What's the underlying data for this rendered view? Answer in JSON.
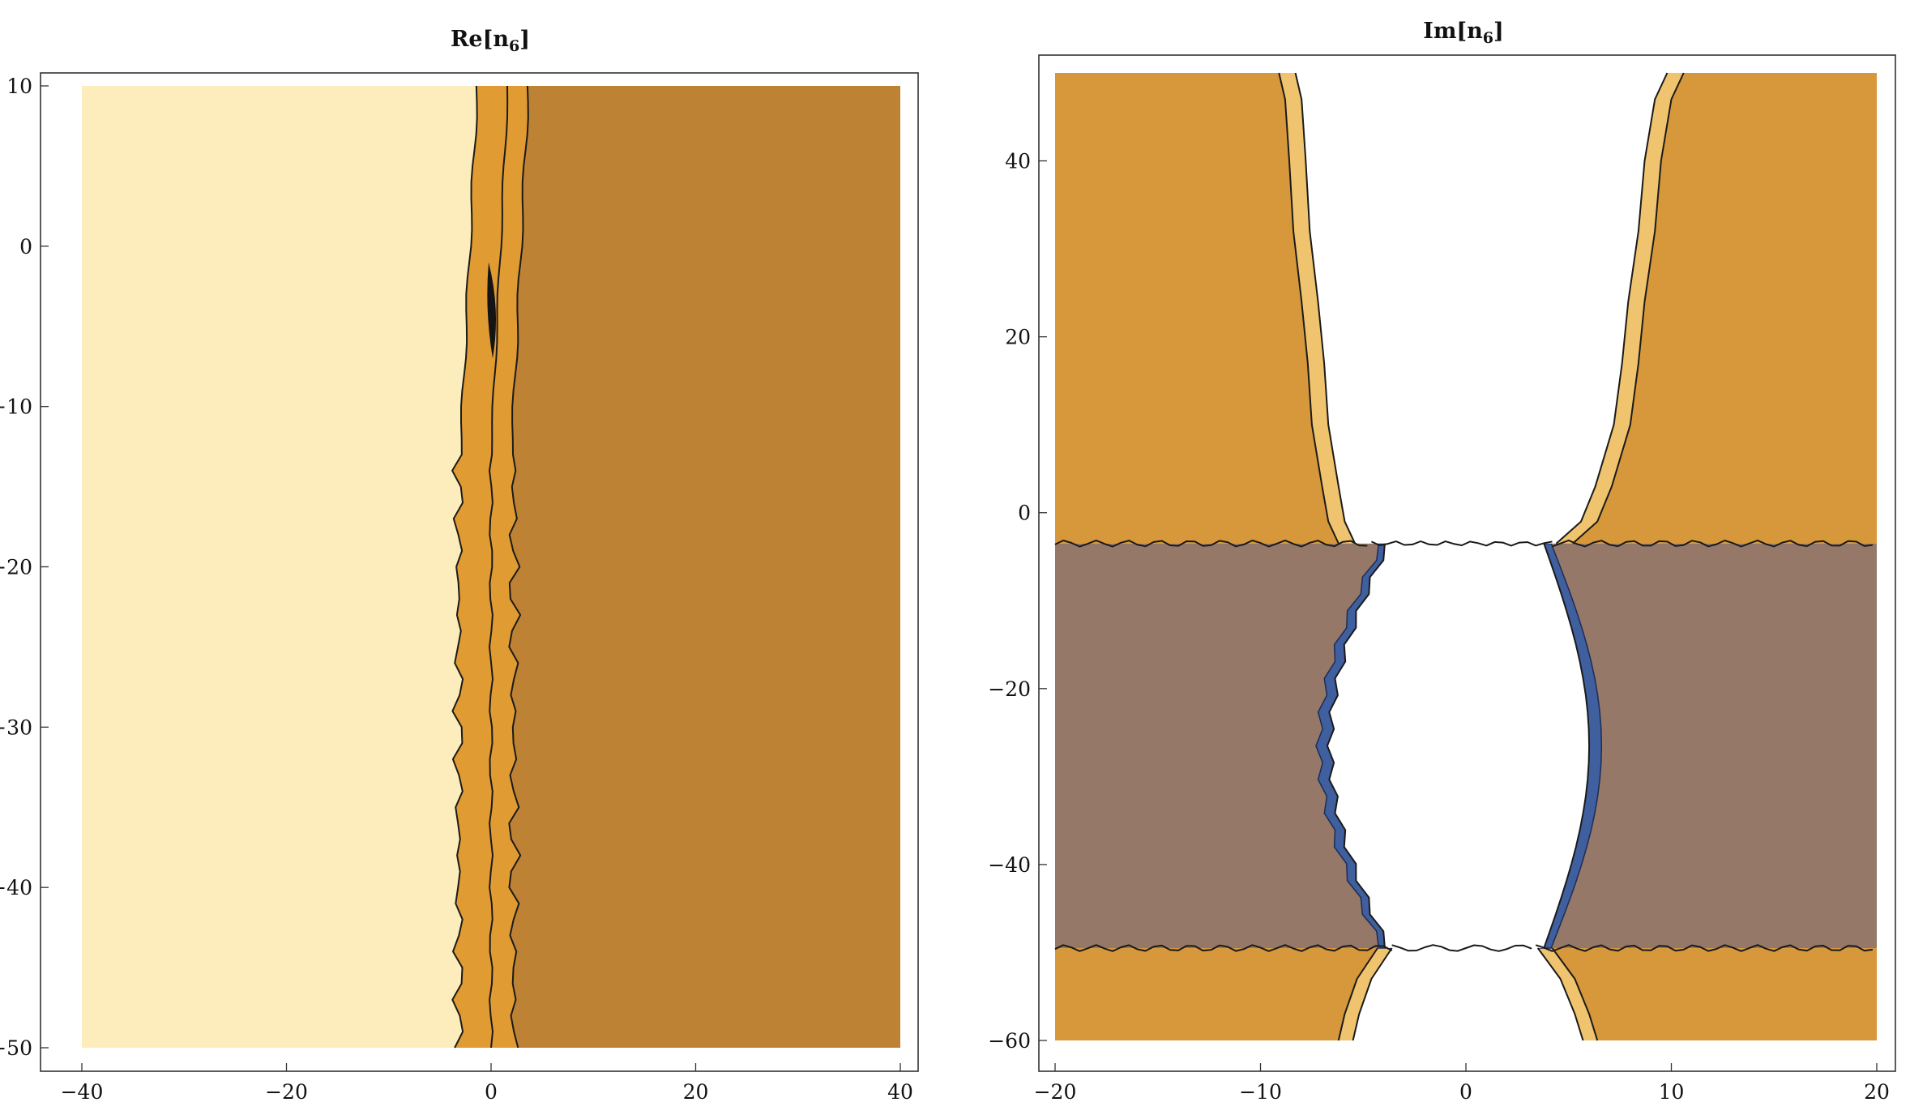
{
  "chart_data": [
    {
      "type": "contour",
      "title": "Re[n6]",
      "title_main": "Re[n",
      "title_sub": "6",
      "title_end": "]",
      "xlim": [
        -40,
        40
      ],
      "ylim": [
        -50,
        10
      ],
      "xticks": [
        -40,
        -20,
        0,
        20,
        40
      ],
      "yticks": [
        -50,
        -40,
        -30,
        -20,
        -10,
        0,
        10
      ],
      "regions": [
        {
          "name": "left-plateau",
          "x_range": [
            -40,
            -3
          ],
          "color": "#fdedbc"
        },
        {
          "name": "transition-band",
          "x_range": [
            -3,
            2
          ],
          "color": "#e09b33"
        },
        {
          "name": "right-plateau",
          "x_range": [
            2,
            40
          ],
          "color": "#be8235"
        }
      ],
      "contour_x": [
        -3,
        0,
        2
      ],
      "dark_core": {
        "x": 0,
        "y_range": [
          -7,
          -1
        ],
        "color": "#141414"
      },
      "colors": {
        "left": "#fdedbc",
        "band": "#e09b33",
        "right": "#be8235"
      }
    },
    {
      "type": "contour",
      "title": "Im[n6]",
      "title_main": "Im[n",
      "title_sub": "6",
      "title_end": "]",
      "xlim": [
        -20,
        20
      ],
      "ylim": [
        -60,
        50
      ],
      "xticks": [
        -20,
        -10,
        0,
        10,
        20
      ],
      "yticks": [
        -60,
        -40,
        -20,
        0,
        20,
        40
      ],
      "regions": [
        {
          "name": "upper-orange",
          "y_range": [
            -3.5,
            50
          ],
          "color": "#d6983b"
        },
        {
          "name": "middle-brown",
          "y_range": [
            -49.5,
            -3.5
          ],
          "color": "#957867"
        },
        {
          "name": "lower-orange",
          "y_range": [
            -60,
            -49.5
          ],
          "color": "#d6983b"
        },
        {
          "name": "central-white",
          "color": "#ffffff"
        },
        {
          "name": "blue-rim",
          "color": "#3f5f9f"
        }
      ],
      "horizontal_contours_y": [
        -3.5,
        -49.5
      ],
      "colors": {
        "orange": "#d6983b",
        "brown": "#957867",
        "white": "#ffffff",
        "blue": "#3f5f9f",
        "edge": "#f0c46e"
      }
    }
  ]
}
